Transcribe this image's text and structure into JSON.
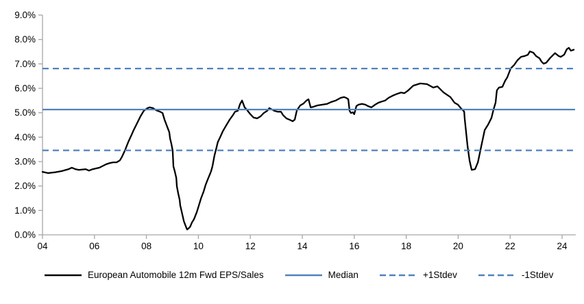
{
  "figure": {
    "background": "#ffffff"
  },
  "colors": {
    "series_line": "#000000",
    "stat_lines": "#4f81bd",
    "axis": "#a6a6a6",
    "text": "#000000"
  },
  "chart_data": {
    "type": "line",
    "title": "",
    "xlabel": "",
    "ylabel": "",
    "grid": false,
    "legend_position": "bottom",
    "x_axis": {
      "range": [
        2004,
        2024.5
      ],
      "ticks": [
        2004,
        2006,
        2008,
        2010,
        2012,
        2014,
        2016,
        2018,
        2020,
        2022,
        2024
      ],
      "tick_labels": [
        "04",
        "06",
        "08",
        "10",
        "12",
        "14",
        "16",
        "18",
        "20",
        "22",
        "24"
      ]
    },
    "y_axis": {
      "range": [
        0,
        9
      ],
      "ticks": [
        0,
        1,
        2,
        3,
        4,
        5,
        6,
        7,
        8,
        9
      ],
      "tick_labels": [
        "0.0%",
        "1.0%",
        "2.0%",
        "3.0%",
        "4.0%",
        "5.0%",
        "6.0%",
        "7.0%",
        "8.0%",
        "9.0%"
      ]
    },
    "series": [
      {
        "name": "European Automobile 12m Fwd EPS/Sales",
        "kind": "line",
        "color": "#000000",
        "dash": "solid",
        "points": [
          [
            2004.0,
            2.58
          ],
          [
            2004.21,
            2.53
          ],
          [
            2004.47,
            2.56
          ],
          [
            2004.74,
            2.61
          ],
          [
            2005.0,
            2.69
          ],
          [
            2005.13,
            2.75
          ],
          [
            2005.27,
            2.69
          ],
          [
            2005.4,
            2.66
          ],
          [
            2005.66,
            2.69
          ],
          [
            2005.79,
            2.63
          ],
          [
            2005.93,
            2.69
          ],
          [
            2006.19,
            2.75
          ],
          [
            2006.45,
            2.89
          ],
          [
            2006.59,
            2.94
          ],
          [
            2006.72,
            2.97
          ],
          [
            2006.85,
            2.97
          ],
          [
            2006.98,
            3.05
          ],
          [
            2007.06,
            3.2
          ],
          [
            2007.17,
            3.45
          ],
          [
            2007.3,
            3.8
          ],
          [
            2007.43,
            4.1
          ],
          [
            2007.51,
            4.29
          ],
          [
            2007.64,
            4.57
          ],
          [
            2007.77,
            4.85
          ],
          [
            2007.9,
            5.08
          ],
          [
            2008.04,
            5.19
          ],
          [
            2008.12,
            5.22
          ],
          [
            2008.25,
            5.19
          ],
          [
            2008.38,
            5.1
          ],
          [
            2008.51,
            5.05
          ],
          [
            2008.62,
            4.99
          ],
          [
            2008.7,
            4.71
          ],
          [
            2008.78,
            4.48
          ],
          [
            2008.88,
            4.2
          ],
          [
            2008.91,
            3.95
          ],
          [
            2008.96,
            3.73
          ],
          [
            2009.01,
            3.45
          ],
          [
            2009.04,
            2.8
          ],
          [
            2009.09,
            2.61
          ],
          [
            2009.15,
            2.33
          ],
          [
            2009.17,
            1.99
          ],
          [
            2009.22,
            1.71
          ],
          [
            2009.28,
            1.43
          ],
          [
            2009.3,
            1.21
          ],
          [
            2009.36,
            0.93
          ],
          [
            2009.41,
            0.7
          ],
          [
            2009.44,
            0.56
          ],
          [
            2009.49,
            0.42
          ],
          [
            2009.54,
            0.28
          ],
          [
            2009.57,
            0.22
          ],
          [
            2009.67,
            0.31
          ],
          [
            2009.7,
            0.37
          ],
          [
            2009.75,
            0.5
          ],
          [
            2009.83,
            0.64
          ],
          [
            2009.94,
            0.93
          ],
          [
            2010.02,
            1.21
          ],
          [
            2010.1,
            1.49
          ],
          [
            2010.2,
            1.77
          ],
          [
            2010.28,
            2.05
          ],
          [
            2010.36,
            2.27
          ],
          [
            2010.46,
            2.52
          ],
          [
            2010.49,
            2.61
          ],
          [
            2010.54,
            2.8
          ],
          [
            2010.62,
            3.25
          ],
          [
            2010.68,
            3.5
          ],
          [
            2010.75,
            3.8
          ],
          [
            2010.86,
            4.05
          ],
          [
            2010.94,
            4.24
          ],
          [
            2011.07,
            4.48
          ],
          [
            2011.2,
            4.71
          ],
          [
            2011.33,
            4.9
          ],
          [
            2011.41,
            5.04
          ],
          [
            2011.52,
            5.08
          ],
          [
            2011.6,
            5.35
          ],
          [
            2011.68,
            5.5
          ],
          [
            2011.78,
            5.22
          ],
          [
            2011.86,
            5.13
          ],
          [
            2012.0,
            4.94
          ],
          [
            2012.13,
            4.8
          ],
          [
            2012.26,
            4.77
          ],
          [
            2012.39,
            4.85
          ],
          [
            2012.52,
            4.99
          ],
          [
            2012.65,
            5.08
          ],
          [
            2012.73,
            5.19
          ],
          [
            2012.84,
            5.13
          ],
          [
            2012.92,
            5.08
          ],
          [
            2013.05,
            5.04
          ],
          [
            2013.18,
            5.04
          ],
          [
            2013.26,
            4.9
          ],
          [
            2013.39,
            4.77
          ],
          [
            2013.52,
            4.71
          ],
          [
            2013.63,
            4.65
          ],
          [
            2013.71,
            4.72
          ],
          [
            2013.79,
            5.1
          ],
          [
            2013.92,
            5.3
          ],
          [
            2014.05,
            5.38
          ],
          [
            2014.16,
            5.5
          ],
          [
            2014.24,
            5.55
          ],
          [
            2014.32,
            5.22
          ],
          [
            2014.42,
            5.24
          ],
          [
            2014.58,
            5.3
          ],
          [
            2014.77,
            5.33
          ],
          [
            2014.95,
            5.36
          ],
          [
            2015.11,
            5.44
          ],
          [
            2015.29,
            5.5
          ],
          [
            2015.48,
            5.61
          ],
          [
            2015.61,
            5.64
          ],
          [
            2015.69,
            5.61
          ],
          [
            2015.77,
            5.55
          ],
          [
            2015.82,
            5.08
          ],
          [
            2015.87,
            4.99
          ],
          [
            2015.95,
            5.02
          ],
          [
            2016.0,
            4.94
          ],
          [
            2016.08,
            5.27
          ],
          [
            2016.16,
            5.33
          ],
          [
            2016.3,
            5.36
          ],
          [
            2016.43,
            5.33
          ],
          [
            2016.53,
            5.27
          ],
          [
            2016.66,
            5.22
          ],
          [
            2016.8,
            5.33
          ],
          [
            2016.93,
            5.41
          ],
          [
            2017.06,
            5.46
          ],
          [
            2017.19,
            5.5
          ],
          [
            2017.32,
            5.61
          ],
          [
            2017.46,
            5.69
          ],
          [
            2017.59,
            5.75
          ],
          [
            2017.67,
            5.78
          ],
          [
            2017.8,
            5.83
          ],
          [
            2017.93,
            5.8
          ],
          [
            2018.06,
            5.9
          ],
          [
            2018.27,
            6.11
          ],
          [
            2018.54,
            6.2
          ],
          [
            2018.8,
            6.17
          ],
          [
            2019.04,
            6.03
          ],
          [
            2019.2,
            6.08
          ],
          [
            2019.44,
            5.83
          ],
          [
            2019.7,
            5.64
          ],
          [
            2019.86,
            5.41
          ],
          [
            2019.99,
            5.33
          ],
          [
            2020.1,
            5.19
          ],
          [
            2020.23,
            5.05
          ],
          [
            2020.25,
            4.77
          ],
          [
            2020.36,
            3.64
          ],
          [
            2020.44,
            3.03
          ],
          [
            2020.52,
            2.66
          ],
          [
            2020.65,
            2.69
          ],
          [
            2020.76,
            2.97
          ],
          [
            2020.89,
            3.64
          ],
          [
            2021.02,
            4.29
          ],
          [
            2021.15,
            4.51
          ],
          [
            2021.28,
            4.79
          ],
          [
            2021.36,
            5.13
          ],
          [
            2021.44,
            5.41
          ],
          [
            2021.49,
            5.92
          ],
          [
            2021.57,
            6.03
          ],
          [
            2021.7,
            6.06
          ],
          [
            2021.81,
            6.31
          ],
          [
            2021.89,
            6.45
          ],
          [
            2022.02,
            6.81
          ],
          [
            2022.15,
            6.95
          ],
          [
            2022.28,
            7.15
          ],
          [
            2022.42,
            7.29
          ],
          [
            2022.55,
            7.32
          ],
          [
            2022.68,
            7.37
          ],
          [
            2022.76,
            7.51
          ],
          [
            2022.89,
            7.46
          ],
          [
            2023.0,
            7.32
          ],
          [
            2023.13,
            7.23
          ],
          [
            2023.21,
            7.09
          ],
          [
            2023.29,
            7.01
          ],
          [
            2023.39,
            7.05
          ],
          [
            2023.53,
            7.23
          ],
          [
            2023.66,
            7.37
          ],
          [
            2023.73,
            7.44
          ],
          [
            2023.87,
            7.32
          ],
          [
            2023.95,
            7.29
          ],
          [
            2024.08,
            7.38
          ],
          [
            2024.18,
            7.6
          ],
          [
            2024.26,
            7.66
          ],
          [
            2024.34,
            7.54
          ],
          [
            2024.45,
            7.58
          ]
        ]
      },
      {
        "name": "Median",
        "kind": "hline",
        "value": 5.13,
        "color": "#4f81bd",
        "dash": "solid"
      },
      {
        "name": "+1Stdev",
        "kind": "hline",
        "value": 6.81,
        "color": "#4f81bd",
        "dash": "dashed"
      },
      {
        "name": "-1Stdev",
        "kind": "hline",
        "value": 3.46,
        "color": "#4f81bd",
        "dash": "dashed"
      }
    ]
  }
}
